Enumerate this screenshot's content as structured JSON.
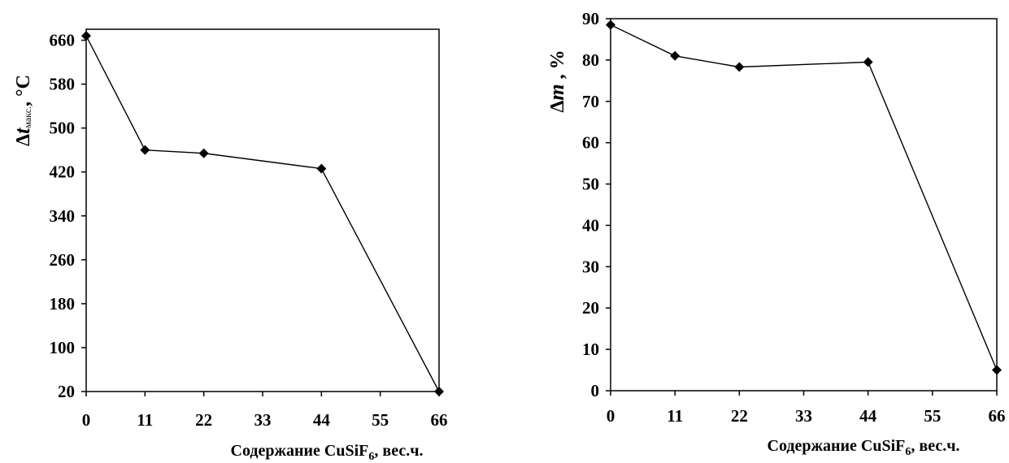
{
  "chart_data": [
    {
      "type": "line",
      "x": [
        0,
        11,
        22,
        44,
        66
      ],
      "y": [
        668,
        460,
        454,
        426,
        20
      ],
      "xticks": [
        "0",
        "11",
        "22",
        "33",
        "44",
        "55",
        "66"
      ],
      "yticks": [
        "20",
        "100",
        "180",
        "260",
        "340",
        "420",
        "500",
        "580",
        "660"
      ],
      "xlim": [
        0,
        66
      ],
      "ylim": [
        20,
        680
      ],
      "xlabel_main": "Содержание CuSiF",
      "xlabel_sub": "6",
      "xlabel_tail": ", вес.ч.",
      "ylabel_delta": "Δ",
      "ylabel_var": "t",
      "ylabel_sub": "макс.",
      "ylabel_unit": ", °C",
      "marker": "diamond",
      "color": "#000000",
      "grid": false
    },
    {
      "type": "line",
      "x": [
        0,
        11,
        22,
        44,
        66
      ],
      "y": [
        88.5,
        81,
        78.3,
        79.5,
        5
      ],
      "xticks": [
        "0",
        "11",
        "22",
        "33",
        "44",
        "55",
        "66"
      ],
      "yticks": [
        "0",
        "10",
        "20",
        "30",
        "40",
        "50",
        "60",
        "70",
        "80",
        "90"
      ],
      "xlim": [
        0,
        66
      ],
      "ylim": [
        0,
        90
      ],
      "xlabel_main": "Содержание CuSiF",
      "xlabel_sub": "6",
      "xlabel_tail": ",  вес.ч.",
      "ylabel_delta": "Δ",
      "ylabel_var": "m",
      "ylabel_unit": " , %",
      "marker": "diamond",
      "color": "#000000",
      "grid": false
    }
  ]
}
